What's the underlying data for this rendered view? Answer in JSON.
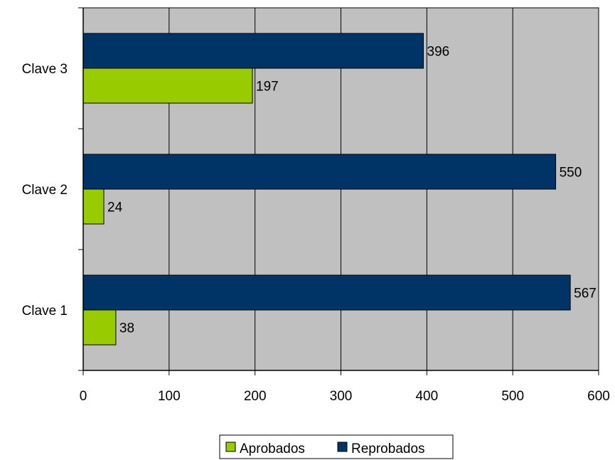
{
  "chart_data": {
    "type": "bar",
    "orientation": "horizontal",
    "title": "",
    "xlabel": "",
    "ylabel": "",
    "categories": [
      "Clave 1",
      "Clave 2",
      "Clave 3"
    ],
    "series": [
      {
        "name": "Aprobados",
        "values": [
          38,
          24,
          197
        ],
        "color": "#99cc00"
      },
      {
        "name": "Reprobados",
        "values": [
          567,
          550,
          396
        ],
        "color": "#003366"
      }
    ],
    "xlim": [
      0,
      600
    ],
    "xticks": [
      0,
      100,
      200,
      300,
      400,
      500,
      600
    ],
    "grid": "vertical",
    "plot_background": "#c0c0c0",
    "data_labels": true,
    "legend_position": "bottom"
  }
}
